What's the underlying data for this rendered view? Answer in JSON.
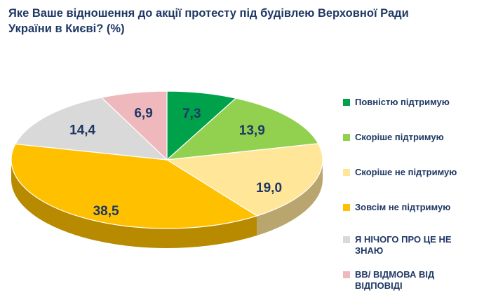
{
  "chart_data": {
    "type": "pie",
    "title": "Яке Ваше відношення до акції протесту під будівлею Верховної Ради України в Києві? (%)",
    "unit": "%",
    "legend_position": "right",
    "style": "3d-pie",
    "label_color": "#1F3864",
    "slices": [
      {
        "label": "Повністю підтримую",
        "value": 7.3,
        "display": "7,3",
        "color": "#00A14B"
      },
      {
        "label": "Скоріше підтримую",
        "value": 13.9,
        "display": "13,9",
        "color": "#92D050"
      },
      {
        "label": "Скоріше не підтримую",
        "value": 19.0,
        "display": "19,0",
        "color": "#FFE699"
      },
      {
        "label": "Зовсім не підтримую",
        "value": 38.5,
        "display": "38,5",
        "color": "#FFC000"
      },
      {
        "label": "Я НІЧОГО ПРО ЦЕ НЕ ЗНАЮ",
        "value": 14.4,
        "display": "14,4",
        "color": "#D9D9D9"
      },
      {
        "label": "ВВ/ ВІДМОВА ВІД ВІДПОВІДІ",
        "value": 6.9,
        "display": "6,9",
        "color": "#EFB8BC"
      }
    ]
  }
}
